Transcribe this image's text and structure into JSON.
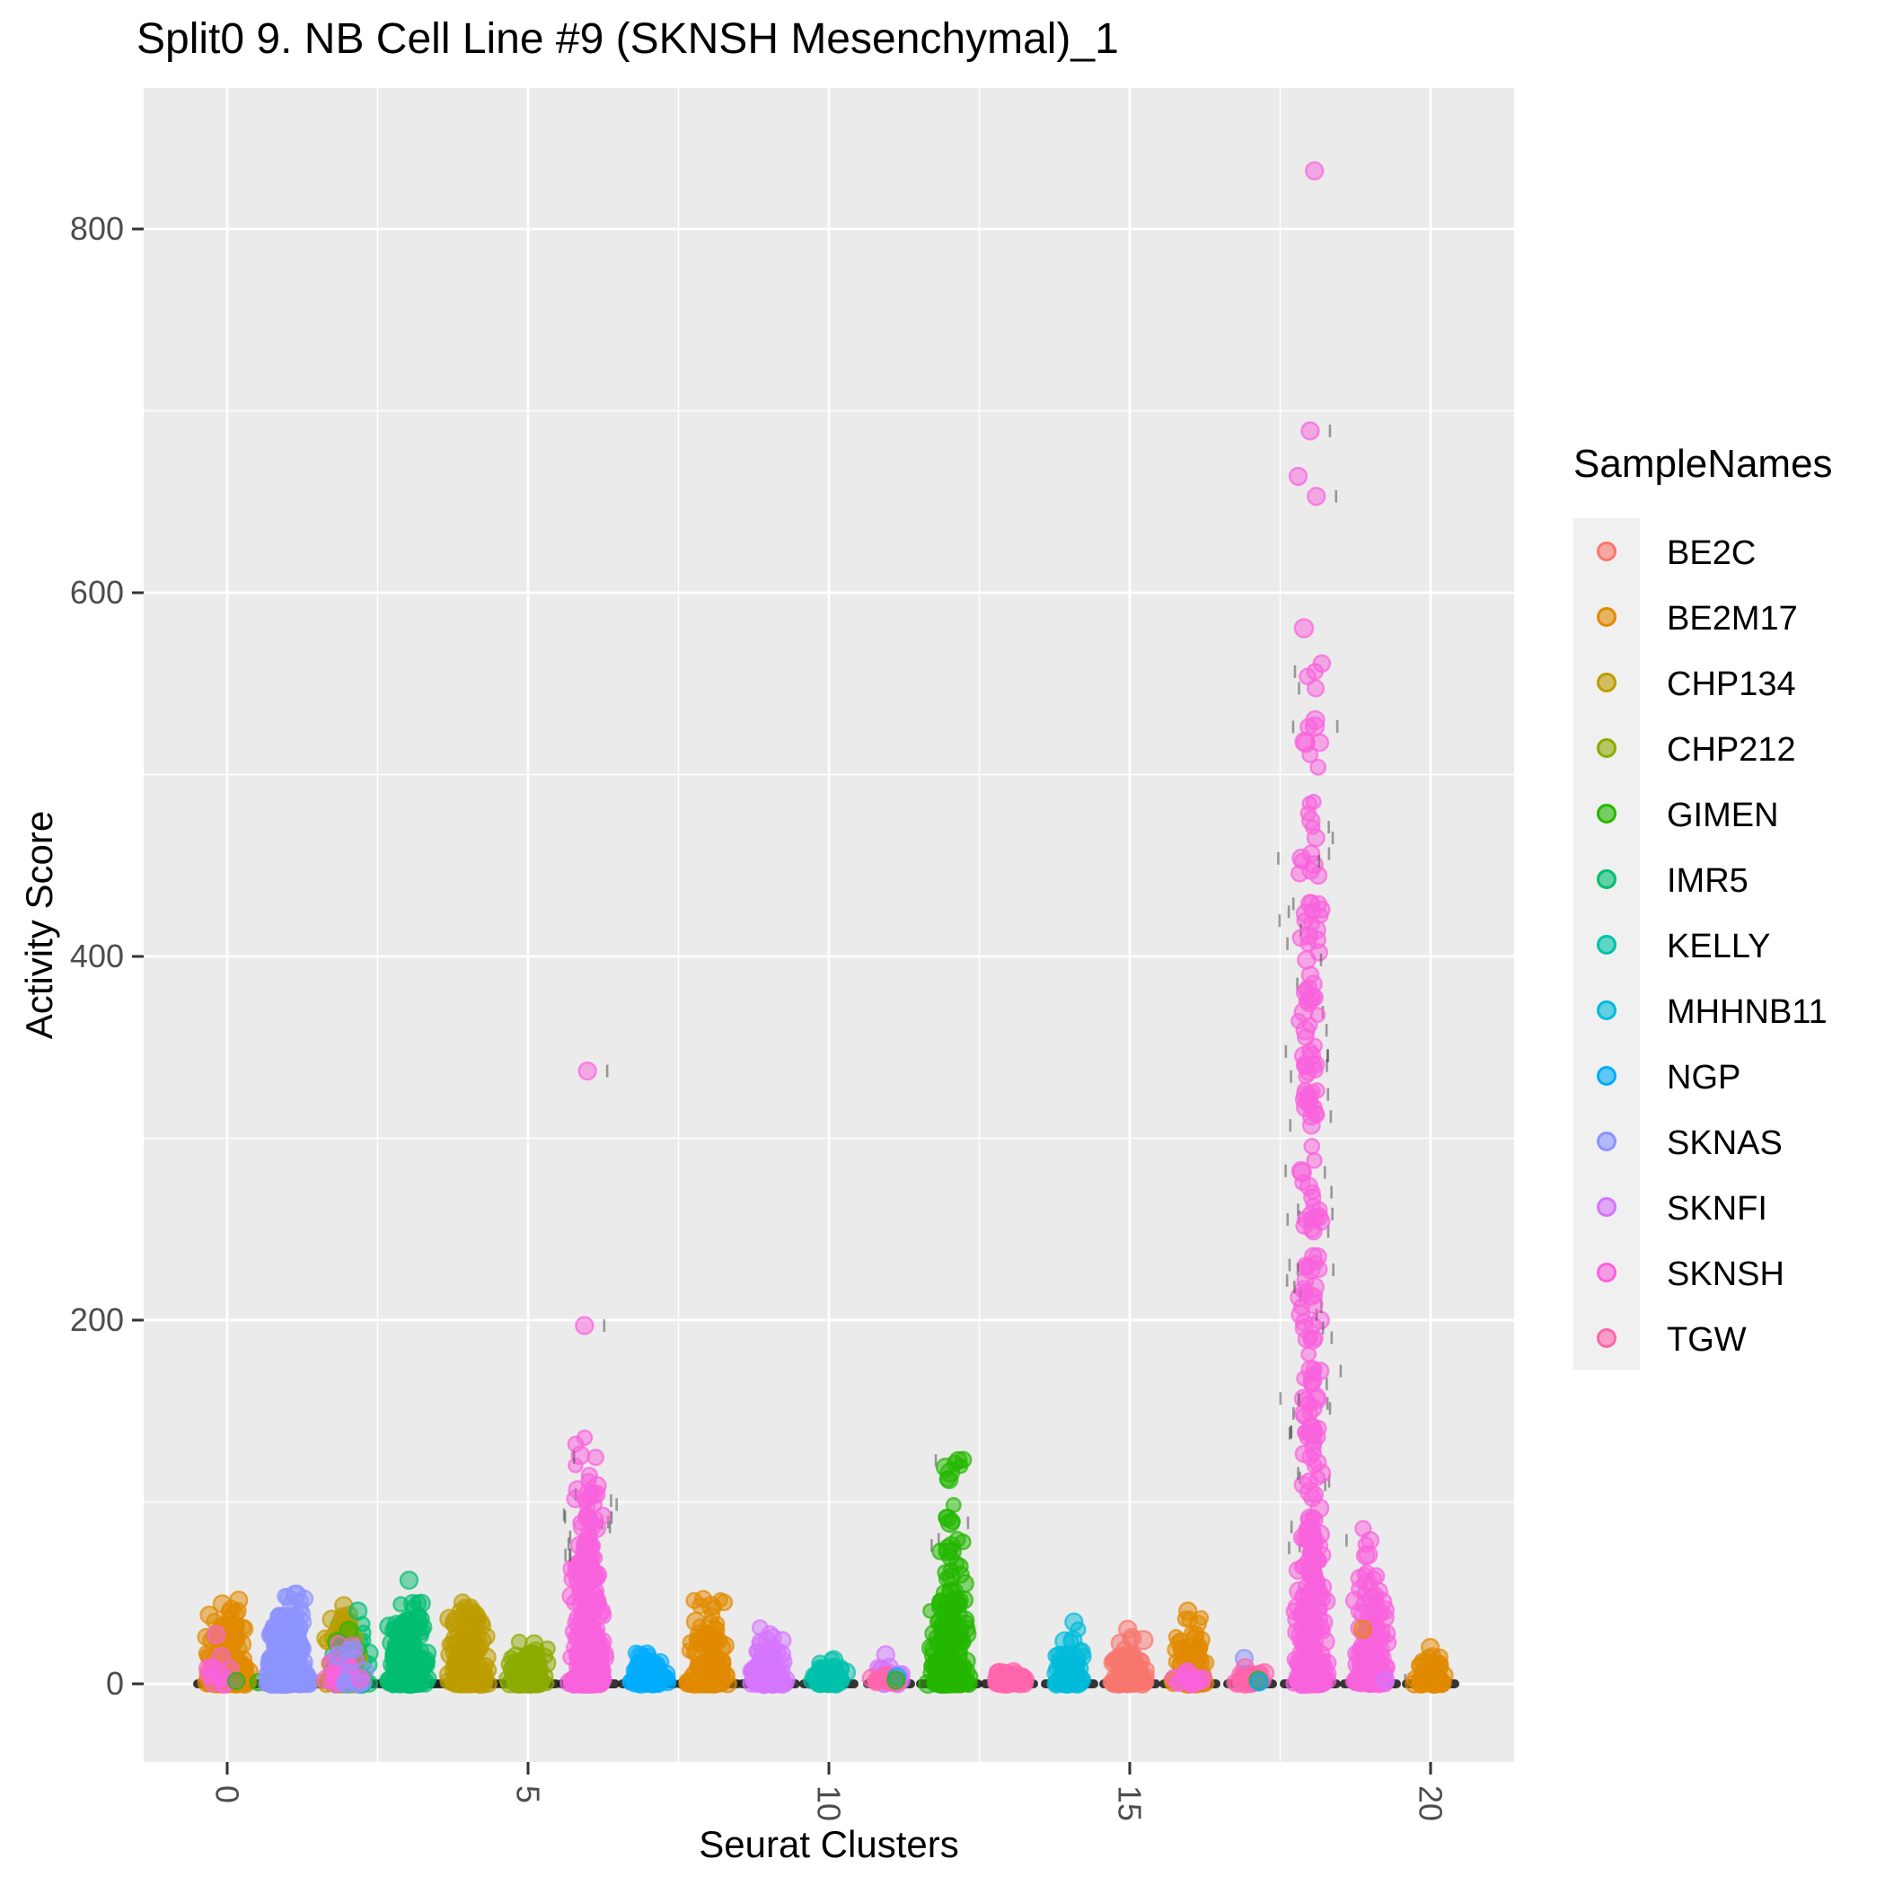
{
  "title": "Split0 9. NB Cell Line #9 (SKNSH Mesenchymal)_1",
  "panel": {
    "bg": "#EBEBEB",
    "grid_color": "#FFFFFF",
    "tick_color": "#333333",
    "tick_label_color": "#4D4D4D",
    "base_mark_color": "#1A1A1A"
  },
  "legend": {
    "title": "SampleNames",
    "entries": [
      {
        "label": "BE2C",
        "color": "#F8766D"
      },
      {
        "label": "BE2M17",
        "color": "#E18A00"
      },
      {
        "label": "CHP134",
        "color": "#BE9C00"
      },
      {
        "label": "CHP212",
        "color": "#8CAB00"
      },
      {
        "label": "GIMEN",
        "color": "#24B700"
      },
      {
        "label": "IMR5",
        "color": "#00BE70"
      },
      {
        "label": "KELLY",
        "color": "#00C1AB"
      },
      {
        "label": "MHHNB11",
        "color": "#00BBDA"
      },
      {
        "label": "NGP",
        "color": "#00ACFC"
      },
      {
        "label": "SKNAS",
        "color": "#8B93FF"
      },
      {
        "label": "SKNFI",
        "color": "#D575FE"
      },
      {
        "label": "SKNSH",
        "color": "#F962DD"
      },
      {
        "label": "TGW",
        "color": "#FF65AC"
      }
    ]
  },
  "chart_data": {
    "type": "scatter",
    "subtype": "jittered strip plot (geom_jitter), one column per cluster",
    "title": "Split0 9. NB Cell Line #9 (SKNSH Mesenchymal)_1",
    "xlabel": "Seurat Clusters",
    "ylabel": "Activity Score",
    "x_ticks": [
      0,
      5,
      10,
      15,
      20
    ],
    "x_minor": [
      2.5,
      7.5,
      12.5,
      17.5
    ],
    "y_ticks": [
      0,
      200,
      400,
      600,
      800
    ],
    "y_minor": [
      100,
      300,
      500,
      700
    ],
    "ylim": [
      -45,
      875
    ],
    "xlim": [
      -1.4,
      21.4
    ],
    "legend_position": "right",
    "grid": true,
    "clusters": [
      {
        "id": 0,
        "spread": 26,
        "groups": [
          {
            "sample": "BE2M17",
            "n": 230,
            "min": 0,
            "max": 33,
            "skew": 2.6
          },
          {
            "sample": "BE2M17",
            "n": 7,
            "min": 33,
            "max": 41,
            "skew": 1
          },
          {
            "sample": "SKNSH",
            "n": 12,
            "min": 0,
            "max": 11,
            "skew": 2,
            "xoff": -10
          },
          {
            "sample": "GIMEN",
            "n": 2,
            "min": 0,
            "max": 4,
            "skew": 1,
            "xoff": 12
          }
        ],
        "outliers": [
          {
            "sample": "BE2M17",
            "value": 44,
            "xoff": -6
          },
          {
            "sample": "BE2M17",
            "value": 46,
            "xoff": 14
          },
          {
            "sample": "SKNSH",
            "value": 27,
            "xoff": -12
          },
          {
            "sample": "SKNSH",
            "value": 15,
            "xoff": -6
          }
        ]
      },
      {
        "id": 1,
        "spread": 27,
        "groups": [
          {
            "sample": "SKNAS",
            "n": 270,
            "min": 0,
            "max": 39,
            "skew": 2.4
          },
          {
            "sample": "SKNAS",
            "n": 8,
            "min": 39,
            "max": 50,
            "skew": 1
          }
        ],
        "outliers": []
      },
      {
        "id": 2,
        "spread": 24,
        "groups": [
          {
            "sample": "IMR5",
            "n": 80,
            "min": 0,
            "max": 35,
            "skew": 2.2,
            "xoff": 4
          },
          {
            "sample": "CHP134",
            "n": 55,
            "min": 0,
            "max": 38,
            "skew": 2.0,
            "xoff": -6
          },
          {
            "sample": "GIMEN",
            "n": 18,
            "min": 0,
            "max": 30,
            "skew": 2.2
          },
          {
            "sample": "SKNSH",
            "n": 22,
            "min": 0,
            "max": 24,
            "skew": 2.6,
            "xoff": -6
          },
          {
            "sample": "SKNAS",
            "n": 10,
            "min": 0,
            "max": 20,
            "skew": 1.6
          }
        ],
        "outliers": [
          {
            "sample": "CHP134",
            "value": 43
          },
          {
            "sample": "IMR5",
            "value": 40,
            "xoff": 10
          },
          {
            "sample": "SKNSH",
            "value": 3,
            "xoff": 14
          }
        ]
      },
      {
        "id": 3,
        "spread": 25,
        "groups": [
          {
            "sample": "IMR5",
            "n": 180,
            "min": 0,
            "max": 37,
            "skew": 2.4
          },
          {
            "sample": "IMR5",
            "n": 6,
            "min": 37,
            "max": 47,
            "skew": 1
          }
        ],
        "outliers": [
          {
            "sample": "IMR5",
            "value": 57
          }
        ]
      },
      {
        "id": 4,
        "spread": 25,
        "groups": [
          {
            "sample": "CHP134",
            "n": 170,
            "min": 0,
            "max": 38,
            "skew": 2.4
          },
          {
            "sample": "CHP134",
            "n": 7,
            "min": 38,
            "max": 47,
            "skew": 1
          }
        ],
        "outliers": []
      },
      {
        "id": 5,
        "spread": 24,
        "groups": [
          {
            "sample": "CHP212",
            "n": 110,
            "min": 0,
            "max": 17,
            "skew": 2.2
          },
          {
            "sample": "CHP212",
            "n": 5,
            "min": 17,
            "max": 23,
            "skew": 1
          }
        ],
        "outliers": []
      },
      {
        "id": 6,
        "spread": 23,
        "dashes": true,
        "groups": [
          {
            "sample": "SKNSH",
            "n": 290,
            "min": 0,
            "max": 84,
            "skew": 2.8
          },
          {
            "sample": "SKNSH",
            "n": 24,
            "min": 84,
            "max": 112,
            "skew": 1
          },
          {
            "sample": "SKNSH",
            "n": 6,
            "min": 112,
            "max": 136,
            "skew": 1
          }
        ],
        "outliers": [
          {
            "sample": "SKNSH",
            "value": 197
          },
          {
            "sample": "SKNSH",
            "value": 337
          }
        ]
      },
      {
        "id": 7,
        "spread": 22,
        "groups": [
          {
            "sample": "NGP",
            "n": 90,
            "min": 0,
            "max": 12,
            "skew": 2.2
          },
          {
            "sample": "NGP",
            "n": 6,
            "min": 12,
            "max": 18,
            "skew": 1
          }
        ],
        "outliers": []
      },
      {
        "id": 8,
        "spread": 25,
        "groups": [
          {
            "sample": "BE2M17",
            "n": 160,
            "min": 0,
            "max": 33,
            "skew": 2.4
          },
          {
            "sample": "BE2M17",
            "n": 9,
            "min": 33,
            "max": 47,
            "skew": 1
          }
        ],
        "outliers": []
      },
      {
        "id": 9,
        "spread": 23,
        "groups": [
          {
            "sample": "SKNFI",
            "n": 110,
            "min": 0,
            "max": 19,
            "skew": 2.3
          },
          {
            "sample": "SKNFI",
            "n": 8,
            "min": 19,
            "max": 31,
            "skew": 1
          }
        ],
        "outliers": []
      },
      {
        "id": 10,
        "spread": 21,
        "groups": [
          {
            "sample": "KELLY",
            "n": 70,
            "min": 0,
            "max": 9,
            "skew": 2.2
          },
          {
            "sample": "KELLY",
            "n": 4,
            "min": 9,
            "max": 14,
            "skew": 1
          }
        ],
        "outliers": []
      },
      {
        "id": 11,
        "spread": 17,
        "groups": [
          {
            "sample": "SKNFI",
            "n": 22,
            "min": 0,
            "max": 9,
            "skew": 2
          },
          {
            "sample": "TGW",
            "n": 15,
            "min": 0,
            "max": 6,
            "skew": 2,
            "xoff": -5
          }
        ],
        "outliers": [
          {
            "sample": "SKNFI",
            "value": 16
          },
          {
            "sample": "NGP",
            "value": 4,
            "xoff": 10
          },
          {
            "sample": "GIMEN",
            "value": 2,
            "xoff": 6
          }
        ]
      },
      {
        "id": 12,
        "spread": 25,
        "dashes": true,
        "groups": [
          {
            "sample": "GIMEN",
            "n": 230,
            "min": 0,
            "max": 46,
            "skew": 2.6
          },
          {
            "sample": "GIMEN",
            "n": 26,
            "min": 46,
            "max": 92,
            "skew": 1.2
          },
          {
            "sample": "GIMEN",
            "n": 9,
            "min": 92,
            "max": 126,
            "skew": 1
          }
        ],
        "outliers": []
      },
      {
        "id": 13,
        "spread": 20,
        "groups": [
          {
            "sample": "TGW",
            "n": 55,
            "min": 0,
            "max": 7,
            "skew": 2
          }
        ],
        "outliers": []
      },
      {
        "id": 14,
        "spread": 20,
        "groups": [
          {
            "sample": "MHHNB11",
            "n": 80,
            "min": 0,
            "max": 17,
            "skew": 2.2
          },
          {
            "sample": "MHHNB11",
            "n": 6,
            "min": 17,
            "max": 30,
            "skew": 1
          }
        ],
        "outliers": [
          {
            "sample": "MHHNB11",
            "value": 34
          }
        ]
      },
      {
        "id": 15,
        "spread": 22,
        "groups": [
          {
            "sample": "BE2C",
            "n": 100,
            "min": 0,
            "max": 15,
            "skew": 2.2
          },
          {
            "sample": "BE2C",
            "n": 8,
            "min": 15,
            "max": 27,
            "skew": 1
          }
        ],
        "outliers": [
          {
            "sample": "BE2C",
            "value": 30
          }
        ]
      },
      {
        "id": 16,
        "spread": 22,
        "groups": [
          {
            "sample": "BE2M17",
            "n": 85,
            "min": 0,
            "max": 26,
            "skew": 2.2
          },
          {
            "sample": "BE2M17",
            "n": 6,
            "min": 26,
            "max": 37,
            "skew": 1
          },
          {
            "sample": "SKNSH",
            "n": 16,
            "min": 0,
            "max": 9,
            "skew": 2,
            "xoff": -4
          }
        ],
        "outliers": [
          {
            "sample": "BE2M17",
            "value": 40
          }
        ]
      },
      {
        "id": 17,
        "spread": 18,
        "groups": [
          {
            "sample": "TGW",
            "n": 48,
            "min": 0,
            "max": 6,
            "skew": 2
          }
        ],
        "outliers": [
          {
            "sample": "SKNAS",
            "value": 14,
            "xoff": -12
          },
          {
            "sample": "TGW",
            "value": 9,
            "xoff": -10
          },
          {
            "sample": "GIMEN",
            "value": 2,
            "xoff": 8
          },
          {
            "sample": "NGP",
            "value": 1,
            "xoff": 12
          }
        ]
      },
      {
        "id": 18,
        "spread": 22,
        "dashes": true,
        "groups": [
          {
            "sample": "SKNSH",
            "n": 160,
            "min": 0,
            "max": 60,
            "skew": 2.2
          },
          {
            "sample": "SKNSH",
            "n": 115,
            "min": 60,
            "max": 250,
            "skew": 1.3
          },
          {
            "sample": "SKNSH",
            "n": 85,
            "min": 250,
            "max": 460,
            "skew": 1
          },
          {
            "sample": "SKNSH",
            "n": 11,
            "min": 460,
            "max": 525,
            "skew": 1
          },
          {
            "sample": "SKNSH",
            "n": 8,
            "min": 525,
            "max": 592,
            "skew": 1
          }
        ],
        "outliers": [
          {
            "sample": "SKNSH",
            "value": 653
          },
          {
            "sample": "SKNSH",
            "value": 664,
            "xoff": -8
          },
          {
            "sample": "SKNSH",
            "value": 689
          },
          {
            "sample": "SKNSH",
            "value": 832
          }
        ]
      },
      {
        "id": 19,
        "spread": 22,
        "dashes": true,
        "groups": [
          {
            "sample": "SKNSH",
            "n": 135,
            "min": 0,
            "max": 52,
            "skew": 2.2
          },
          {
            "sample": "SKNSH",
            "n": 12,
            "min": 52,
            "max": 88,
            "skew": 1
          }
        ],
        "outliers": [
          {
            "sample": "SKNSH",
            "value": 58,
            "xoff": -14
          },
          {
            "sample": "BE2M17",
            "value": 30,
            "xoff": -10
          },
          {
            "sample": "SKNFI",
            "value": 2,
            "xoff": 12
          }
        ]
      },
      {
        "id": 20,
        "spread": 20,
        "groups": [
          {
            "sample": "BE2M17",
            "n": 70,
            "min": 0,
            "max": 12,
            "skew": 2.2
          },
          {
            "sample": "BE2M17",
            "n": 4,
            "min": 12,
            "max": 16,
            "skew": 1
          }
        ],
        "outliers": [
          {
            "sample": "BE2M17",
            "value": 20
          }
        ]
      }
    ]
  }
}
